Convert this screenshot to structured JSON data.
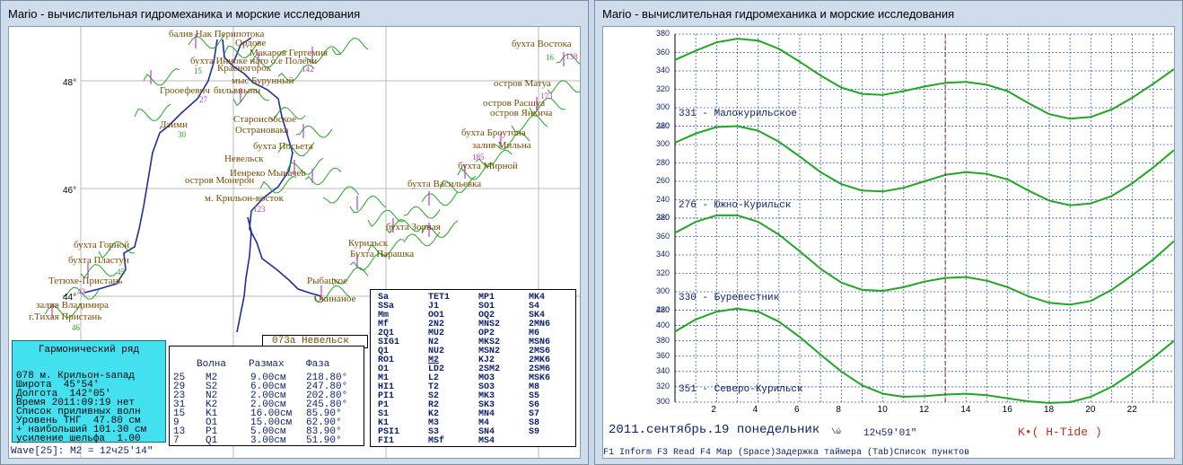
{
  "window_title": "Mario - вычислительная гидромеханика и морские исследования",
  "map": {
    "latitudes": [
      "48°",
      "46°",
      "44°"
    ],
    "places": [
      {
        "name": "бaлив Нак Перипотока"
      },
      {
        "name": "бухта Востока"
      },
      {
        "name": "Ордове"
      },
      {
        "name": "Макаров Гертемия"
      },
      {
        "name": "бухта Инноке нато о.е Полени"
      },
      {
        "name": "Красногорок"
      },
      {
        "name": "мыс Бурунный"
      },
      {
        "name": "Грооефевич"
      },
      {
        "name": "бильвнынн"
      },
      {
        "name": "Дэими"
      },
      {
        "name": "Староисобское"
      },
      {
        "name": "Острановака"
      },
      {
        "name": "бухта Посьета"
      },
      {
        "name": "Невельск"
      },
      {
        "name": "Иенреко Мыкачеb"
      },
      {
        "name": "остров Монерон"
      },
      {
        "name": "м. Крильон-восток"
      },
      {
        "name": "остров Матуа"
      },
      {
        "name": "остров Расшуа"
      },
      {
        "name": "остров Янкича"
      },
      {
        "name": "бухта Броутона"
      },
      {
        "name": "залив Мильна"
      },
      {
        "name": "бухта Мирной"
      },
      {
        "name": "бухта Васильевка"
      },
      {
        "name": "бухта Зорная"
      },
      {
        "name": "Курильск"
      },
      {
        "name": "Бухта Парашка"
      },
      {
        "name": "бухта Горной"
      },
      {
        "name": "бухта Пластун"
      },
      {
        "name": "Тетюхе-Пристань"
      },
      {
        "name": "залив Владимира"
      },
      {
        "name": "г.Тихая Пристань"
      },
      {
        "name": "Рыбацкое"
      },
      {
        "name": "Окинаное"
      }
    ],
    "values": [
      "15",
      "16",
      "27",
      "30",
      "45",
      "42",
      "46",
      "142",
      "138",
      "123",
      "173",
      "185"
    ]
  },
  "harmonic": {
    "title": "Гармонический ряд",
    "rows": [
      "078 м. Крильон-sanaд",
      "Широта  45°54'",
      "Долгота  142°05'",
      "Время 2011:09:19 нет",
      "Список приливных волн",
      "Уровень ТНГ  47.80 см",
      "+ наибольший 101.30 см",
      "усиление шельфа  1.00"
    ]
  },
  "wave_table": {
    "headers": [
      "Волна",
      "Размах",
      "Фаза"
    ],
    "rows": [
      {
        "n": "25",
        "wave": "M2",
        "amp": "9.00см",
        "phase": "218.80°"
      },
      {
        "n": "29",
        "wave": "S2",
        "amp": "6.00см",
        "phase": "247.80°"
      },
      {
        "n": "23",
        "wave": "N2",
        "amp": "2.00см",
        "phase": "202.80°"
      },
      {
        "n": "31",
        "wave": "K2",
        "amp": "2.00см",
        "phase": "245.80°"
      },
      {
        "n": "15",
        "wave": "K1",
        "amp": "16.00см",
        "phase": "85.90°"
      },
      {
        "n": "9",
        "wave": "O1",
        "amp": "15.00см",
        "phase": "62.90°"
      },
      {
        "n": "13",
        "wave": "P1",
        "amp": "5.00см",
        "phase": "83.90°"
      },
      {
        "n": "7",
        "wave": "Q1",
        "amp": "3.00см",
        "phase": "51.90°"
      }
    ]
  },
  "selected_station": "073а Невельск",
  "constituents": [
    [
      "Sa",
      "SSa",
      "Mm",
      "Mf",
      "2Q1",
      "SIG1",
      "Q1",
      "RO1",
      "O1",
      "M1",
      "HI1",
      "PI1",
      "P1",
      "S1",
      "K1",
      "PSI1",
      "FI1"
    ],
    [
      "TET1",
      "J1",
      "OO1",
      "2N2",
      "MU2",
      "N2",
      "NU2",
      "M2",
      "LD2",
      "L2",
      "T2",
      "S2",
      "R2",
      "K2",
      "M3",
      "S3",
      "MSf"
    ],
    [
      "MP1",
      "SO1",
      "OQ2",
      "MNS2",
      "OP2",
      "MKS2",
      "MSN2",
      "KJ2",
      "2SM2",
      "MO3",
      "SO3",
      "MK3",
      "SK3",
      "MN4",
      "M4",
      "SN4",
      "MS4"
    ],
    [
      "MK4",
      "S4",
      "SK4",
      "2MN6",
      "M6",
      "MSN6",
      "2MS6",
      "2MK6",
      "2SM6",
      "MSK6",
      "M8",
      "S5",
      "S6",
      "S7",
      "S8",
      "S9",
      ""
    ]
  ],
  "status_line": "Wave[25]: M2 =   12ч25'14\"",
  "tide_chart": {
    "chart_data": {
      "type": "line",
      "x": [
        0,
        1,
        2,
        3,
        4,
        5,
        6,
        7,
        8,
        9,
        10,
        11,
        12,
        13,
        14,
        15,
        16,
        17,
        18,
        19,
        20,
        21,
        22,
        23,
        24
      ],
      "xticks": [
        "2",
        "4",
        "6",
        "8",
        "10",
        "12",
        "14",
        "16",
        "18",
        "20",
        "22"
      ],
      "xlim": [
        0,
        24
      ],
      "cursor_x": 13.0,
      "grid": true,
      "series": [
        {
          "name": "331 - Малокурильское",
          "ylim": [
            280,
            380
          ],
          "yticks": [
            "380",
            "360",
            "340",
            "320",
            "300",
            "280"
          ],
          "values": [
            352,
            362,
            371,
            375,
            373,
            364,
            350,
            335,
            322,
            315,
            314,
            318,
            323,
            327,
            328,
            325,
            318,
            305,
            293,
            288,
            290,
            298,
            311,
            326,
            342
          ]
        },
        {
          "name": "276 - Южно-Курильск",
          "ylim": [
            220,
            320
          ],
          "yticks": [
            "320",
            "300",
            "280",
            "260",
            "240",
            "220"
          ],
          "values": [
            302,
            312,
            319,
            320,
            315,
            303,
            287,
            270,
            257,
            250,
            249,
            253,
            260,
            267,
            270,
            268,
            262,
            250,
            239,
            234,
            236,
            244,
            258,
            275,
            294
          ]
        },
        {
          "name": "330 - Буревестник",
          "ylim": [
            280,
            380
          ],
          "yticks": [
            "380",
            "360",
            "340",
            "320",
            "300",
            "280"
          ],
          "values": [
            364,
            376,
            383,
            383,
            376,
            362,
            344,
            325,
            310,
            302,
            301,
            305,
            311,
            315,
            316,
            312,
            305,
            295,
            288,
            286,
            290,
            302,
            318,
            335,
            355
          ]
        },
        {
          "name": "351 - Северо-Курильск",
          "ylim": [
            300,
            420
          ],
          "yticks": [
            "420",
            "400",
            "380",
            "360",
            "340",
            "320",
            "300"
          ],
          "values": [
            392,
            408,
            418,
            422,
            418,
            405,
            385,
            362,
            340,
            322,
            311,
            307,
            308,
            310,
            311,
            309,
            305,
            301,
            299,
            300,
            307,
            320,
            338,
            358,
            380
          ]
        }
      ]
    },
    "date_text": "2011.сентябрь.19 понедельник",
    "date_suffix": "\\ώ",
    "time_text": "12ч59'01\"",
    "mode_text": "K•( H-Tide )",
    "fkeys": "F1 Inform  F3 Read  F4 Map (Space)Задержка таймера (Tab)Список пунктов"
  },
  "colors": {
    "curve": "#1fa81f",
    "coast": "#1d2fa0",
    "grid": "#3a5cc0",
    "label": "#7a4a00",
    "accent": "#43e0f0"
  }
}
